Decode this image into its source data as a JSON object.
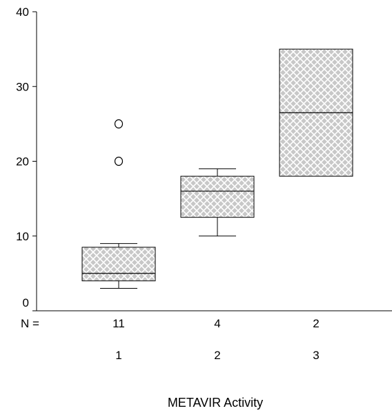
{
  "chart_data": {
    "type": "boxplot",
    "title": "",
    "xlabel": "METAVIR Activity",
    "ylabel": "",
    "ylim": [
      0,
      40
    ],
    "y_ticks": [
      0,
      10,
      20,
      30,
      40
    ],
    "grid": false,
    "n_label": "N =",
    "categories": [
      "1",
      "2",
      "3"
    ],
    "n_values": [
      "11",
      "4",
      "2"
    ],
    "boxes": [
      {
        "category": "1",
        "n": 11,
        "whisker_low": 3,
        "q1": 4,
        "median": 5,
        "q3": 8.5,
        "whisker_high": 9,
        "outliers": [
          20,
          25
        ]
      },
      {
        "category": "2",
        "n": 4,
        "whisker_low": 10,
        "q1": 12.5,
        "median": 16,
        "q3": 18,
        "whisker_high": 19,
        "outliers": []
      },
      {
        "category": "3",
        "n": 2,
        "whisker_low": 18,
        "q1": 18,
        "median": 26.5,
        "q3": 35,
        "whisker_high": 35,
        "outliers": []
      }
    ],
    "colors": {
      "box_fill": "#c8c8c8",
      "hatch": "#ffffff",
      "stroke": "#000000"
    }
  }
}
